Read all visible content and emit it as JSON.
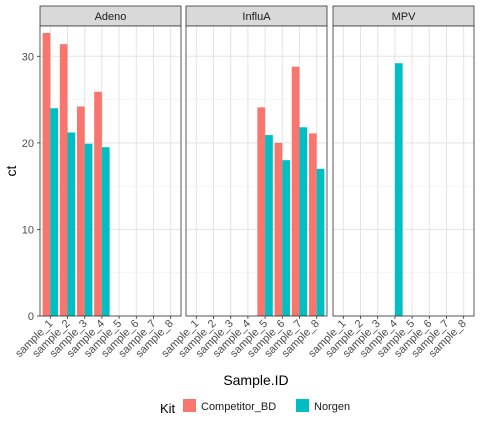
{
  "chart_data": {
    "type": "bar",
    "facets": [
      "Adeno",
      "InfluA",
      "MPV"
    ],
    "categories": [
      "sample_1",
      "sample_2",
      "sample_3",
      "sample_4",
      "sample_5",
      "sample_6",
      "sample_7",
      "sample_8"
    ],
    "xlabel": "Sample.ID",
    "ylabel": "ct",
    "ylim": [
      0,
      33.5
    ],
    "yticks": [
      0,
      10,
      20,
      30
    ],
    "grid": true,
    "legend": {
      "title": "Kit",
      "placement": "bottom",
      "entries": [
        "Competitor_BD",
        "Norgen"
      ]
    },
    "series": [
      {
        "name": "Competitor_BD",
        "color": "#F8766D",
        "values": {
          "Adeno": [
            32.7,
            31.4,
            24.2,
            25.9,
            null,
            null,
            null,
            null
          ],
          "InfluA": [
            null,
            null,
            null,
            null,
            24.1,
            20.0,
            28.8,
            21.1
          ],
          "MPV": [
            null,
            null,
            null,
            null,
            null,
            null,
            null,
            null
          ]
        }
      },
      {
        "name": "Norgen",
        "color": "#00BFC4",
        "values": {
          "Adeno": [
            24.0,
            21.2,
            19.9,
            19.5,
            null,
            null,
            null,
            null
          ],
          "InfluA": [
            null,
            null,
            null,
            null,
            20.9,
            18.0,
            21.8,
            17.0
          ],
          "MPV": [
            null,
            null,
            null,
            29.2,
            null,
            null,
            null,
            null
          ]
        }
      }
    ]
  }
}
